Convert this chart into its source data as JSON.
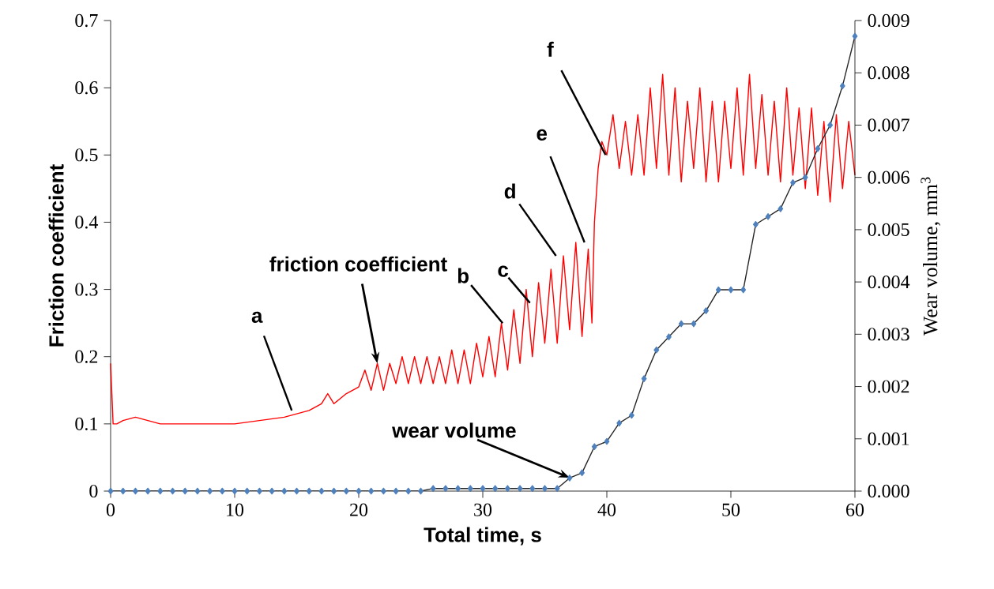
{
  "chart_data": {
    "type": "line",
    "xlabel": "Total time, s",
    "ylabel": "Friction coefficient",
    "y2label": "Wear volume, mm$^{3}$",
    "xlim": [
      0,
      60
    ],
    "xticks": [
      0,
      10,
      20,
      30,
      40,
      50,
      60
    ],
    "ylim": [
      0,
      0.7
    ],
    "yticks": [
      0,
      0.1,
      0.2,
      0.3,
      0.4,
      0.5,
      0.6,
      0.7
    ],
    "y2lim": [
      0,
      0.009
    ],
    "y2ticks": [
      {
        "value": 0,
        "label": "0.000"
      },
      0.001,
      0.002,
      0.003,
      0.004,
      0.005,
      0.006,
      0.007,
      0.008,
      0.009
    ],
    "grid": false,
    "series": [
      {
        "color": "#ff0000",
        "marker": "none",
        "x": [
          0,
          0.2,
          0.5,
          1,
          2,
          3,
          4,
          6,
          8,
          10,
          12,
          14,
          15,
          16,
          17,
          17.5,
          18,
          19,
          20,
          20.5,
          21,
          21.5,
          22,
          22.5,
          23,
          23.5,
          24,
          24.5,
          25,
          25.5,
          26,
          26.5,
          27,
          27.5,
          28,
          28.5,
          29,
          29.5,
          30,
          30.5,
          31,
          31.5,
          32,
          32.5,
          33,
          33.5,
          34,
          34.5,
          35,
          35.5,
          36,
          36.5,
          37,
          37.5,
          38,
          38.5,
          38.8,
          39,
          39.3,
          39.6,
          40,
          40.5,
          41,
          41.5,
          42,
          42.5,
          43,
          43.5,
          44,
          44.5,
          45,
          45.5,
          46,
          46.5,
          47,
          47.5,
          48,
          48.5,
          49,
          49.5,
          50,
          50.5,
          51,
          51.5,
          52,
          52.5,
          53,
          53.5,
          54,
          54.5,
          55,
          55.5,
          56,
          56.5,
          57,
          57.5,
          58,
          58.5,
          59,
          59.5,
          60
        ],
        "values": [
          0.19,
          0.1,
          0.1,
          0.105,
          0.11,
          0.105,
          0.1,
          0.1,
          0.1,
          0.1,
          0.105,
          0.11,
          0.115,
          0.12,
          0.13,
          0.145,
          0.13,
          0.145,
          0.155,
          0.18,
          0.15,
          0.19,
          0.15,
          0.19,
          0.16,
          0.2,
          0.16,
          0.2,
          0.16,
          0.2,
          0.16,
          0.2,
          0.16,
          0.21,
          0.16,
          0.21,
          0.16,
          0.22,
          0.17,
          0.23,
          0.17,
          0.25,
          0.18,
          0.27,
          0.19,
          0.3,
          0.2,
          0.31,
          0.22,
          0.33,
          0.22,
          0.35,
          0.24,
          0.37,
          0.23,
          0.36,
          0.25,
          0.4,
          0.48,
          0.52,
          0.5,
          0.56,
          0.48,
          0.55,
          0.47,
          0.56,
          0.47,
          0.6,
          0.48,
          0.62,
          0.47,
          0.6,
          0.46,
          0.58,
          0.48,
          0.6,
          0.46,
          0.58,
          0.46,
          0.58,
          0.48,
          0.6,
          0.47,
          0.62,
          0.48,
          0.59,
          0.47,
          0.58,
          0.46,
          0.6,
          0.47,
          0.57,
          0.45,
          0.57,
          0.44,
          0.55,
          0.43,
          0.56,
          0.45,
          0.55,
          0.47
        ]
      },
      {
        "color": "#4f81bd",
        "marker": "diamond",
        "axis": "y2",
        "x": [
          0,
          1,
          2,
          3,
          4,
          5,
          6,
          7,
          8,
          9,
          10,
          11,
          12,
          13,
          14,
          15,
          16,
          17,
          18,
          19,
          20,
          21,
          22,
          23,
          24,
          25,
          26,
          27,
          28,
          29,
          30,
          31,
          32,
          33,
          34,
          35,
          36,
          37,
          38,
          39,
          40,
          41,
          42,
          43,
          44,
          45,
          46,
          47,
          48,
          49,
          50,
          51,
          52,
          53,
          54,
          55,
          56,
          57,
          58,
          59,
          60
        ],
        "values": [
          0,
          0,
          0,
          0,
          0,
          0,
          0,
          0,
          0,
          0,
          0,
          0,
          0,
          0,
          0,
          0,
          0,
          0,
          0,
          0,
          0,
          0,
          0,
          0,
          0,
          0,
          5e-05,
          5e-05,
          5e-05,
          5e-05,
          5e-05,
          5e-05,
          5e-05,
          5e-05,
          5e-05,
          5e-05,
          5e-05,
          0.00025,
          0.00035,
          0.00085,
          0.00095,
          0.0013,
          0.00145,
          0.00215,
          0.0027,
          0.00295,
          0.0032,
          0.0032,
          0.00345,
          0.00385,
          0.00385,
          0.00385,
          0.0051,
          0.00525,
          0.0054,
          0.0059,
          0.006,
          0.00655,
          0.007,
          0.00775,
          0.0087
        ]
      }
    ],
    "annotations": [
      {
        "text": "a",
        "x": 14.6,
        "y": 0.12
      },
      {
        "text": "b",
        "x": 31.6,
        "y": 0.25
      },
      {
        "text": "c",
        "x": 33.8,
        "y": 0.28
      },
      {
        "text": "d",
        "x": 35.9,
        "y": 0.35
      },
      {
        "text": "e",
        "x": 38.2,
        "y": 0.37
      },
      {
        "text": "f",
        "x": 39.9,
        "y": 0.5
      },
      {
        "text": "friction coefficient",
        "x": 21.5,
        "y": 0.19
      },
      {
        "text": "wear volume",
        "x": 37,
        "y": 0.02
      }
    ]
  }
}
